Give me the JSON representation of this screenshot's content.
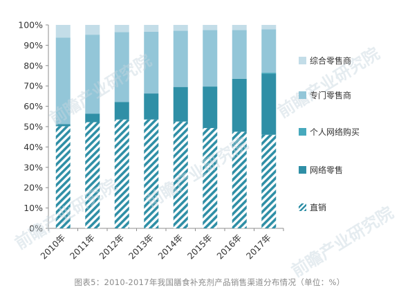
{
  "chart_data": {
    "type": "bar",
    "stacked": true,
    "percent": true,
    "categories": [
      "2010年",
      "2011年",
      "2012年",
      "2013年",
      "2014年",
      "2015年",
      "2016年",
      "2017年"
    ],
    "series": [
      {
        "name": "直销",
        "color": "#2f8fa6",
        "pattern": "diagonal-stripes",
        "values": [
          50.2,
          52.2,
          53.5,
          53.5,
          52.5,
          49.3,
          47.5,
          46.0
        ]
      },
      {
        "name": "网络零售",
        "color": "#2f8fa6",
        "values": [
          1.0,
          4.2,
          8.6,
          12.8,
          17.0,
          20.4,
          26.0,
          30.0
        ]
      },
      {
        "name": "个人网络购买",
        "color": "#47a9bd",
        "values": [
          0.0,
          0.0,
          0.0,
          0.0,
          0.0,
          0.0,
          0.0,
          0.5
        ]
      },
      {
        "name": "专门零售商",
        "color": "#93c6d8",
        "values": [
          42.6,
          38.8,
          34.4,
          30.3,
          27.6,
          27.8,
          24.0,
          21.3
        ]
      },
      {
        "name": "综合零售商",
        "color": "#c3dde8",
        "values": [
          6.2,
          4.8,
          3.5,
          3.4,
          2.9,
          2.5,
          2.5,
          2.2
        ]
      }
    ],
    "legend_order": [
      "综合零售商",
      "专门零售商",
      "个人网络购买",
      "网络零售",
      "直销"
    ],
    "yticks": [
      "0%",
      "10%",
      "20%",
      "30%",
      "40%",
      "50%",
      "60%",
      "70%",
      "80%",
      "90%",
      "100%"
    ],
    "ylim": [
      0,
      100
    ],
    "legend_position": "right",
    "grid": false
  },
  "caption": "图表5：2010-2017年我国膳食补充剂产品销售渠道分布情况（单位：%）",
  "watermark": [
    "前瞻产业研究院"
  ]
}
